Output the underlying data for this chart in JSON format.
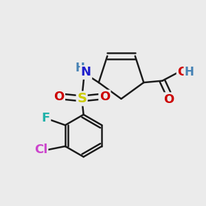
{
  "background_color": "#ebebeb",
  "bond_color": "#1a1a1a",
  "colors": {
    "N": "#2020cc",
    "O": "#cc0000",
    "S": "#cccc00",
    "F": "#20B2AA",
    "Cl": "#cc44cc",
    "H": "#4682B4",
    "C": "#1a1a1a"
  },
  "bond_lw": 1.8,
  "font_size": 13
}
